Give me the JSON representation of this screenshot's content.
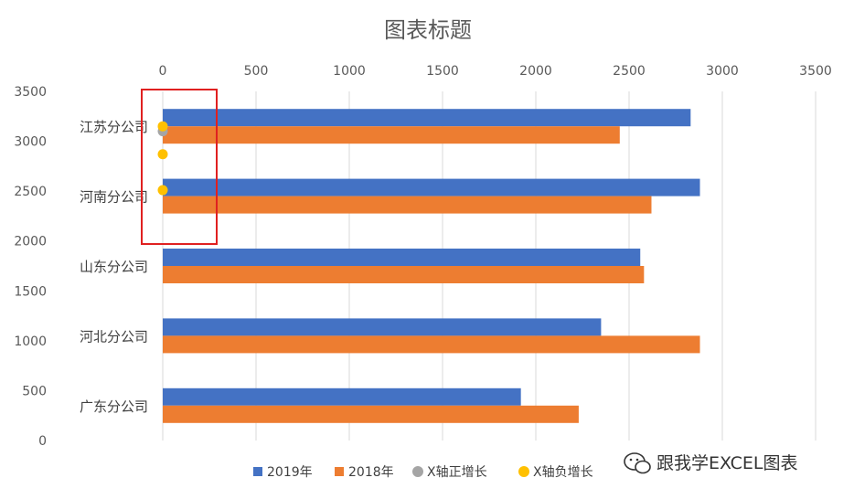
{
  "chart_data": {
    "type": "bar",
    "orientation": "horizontal",
    "title": "图表标题",
    "categories": [
      "广东分公司",
      "河北分公司",
      "山东分公司",
      "河南分公司",
      "江苏分公司"
    ],
    "series": [
      {
        "name": "2019年",
        "type": "bar",
        "color": "#4472C4",
        "values": [
          1920,
          2350,
          2560,
          2880,
          2830
        ]
      },
      {
        "name": "2018年",
        "type": "bar",
        "color": "#ED7D31",
        "values": [
          2230,
          2880,
          2580,
          2620,
          2450
        ]
      }
    ],
    "scatter_series": [
      {
        "name": "X轴正增长",
        "color": "#A5A5A5",
        "points": [
          {
            "x": 0,
            "y": 3100
          }
        ]
      },
      {
        "name": "X轴负增长",
        "color": "#FFC000",
        "points": [
          {
            "x": 0,
            "y": 3150
          },
          {
            "x": 0,
            "y": 2870
          },
          {
            "x": 0,
            "y": 2510
          }
        ]
      }
    ],
    "xaxis": {
      "position": "top",
      "min": 0,
      "max": 3500,
      "ticks": [
        0,
        500,
        1000,
        1500,
        2000,
        2500,
        3000,
        3500
      ]
    },
    "yaxis_secondary": {
      "position": "left",
      "min": 0,
      "max": 3500,
      "ticks": [
        0,
        500,
        1000,
        1500,
        2000,
        2500,
        3000,
        3500
      ]
    },
    "grid": true,
    "legend": "bottom",
    "highlight": {
      "color": "#E02020"
    }
  },
  "watermark": {
    "text": "跟我学EXCEL图表"
  }
}
